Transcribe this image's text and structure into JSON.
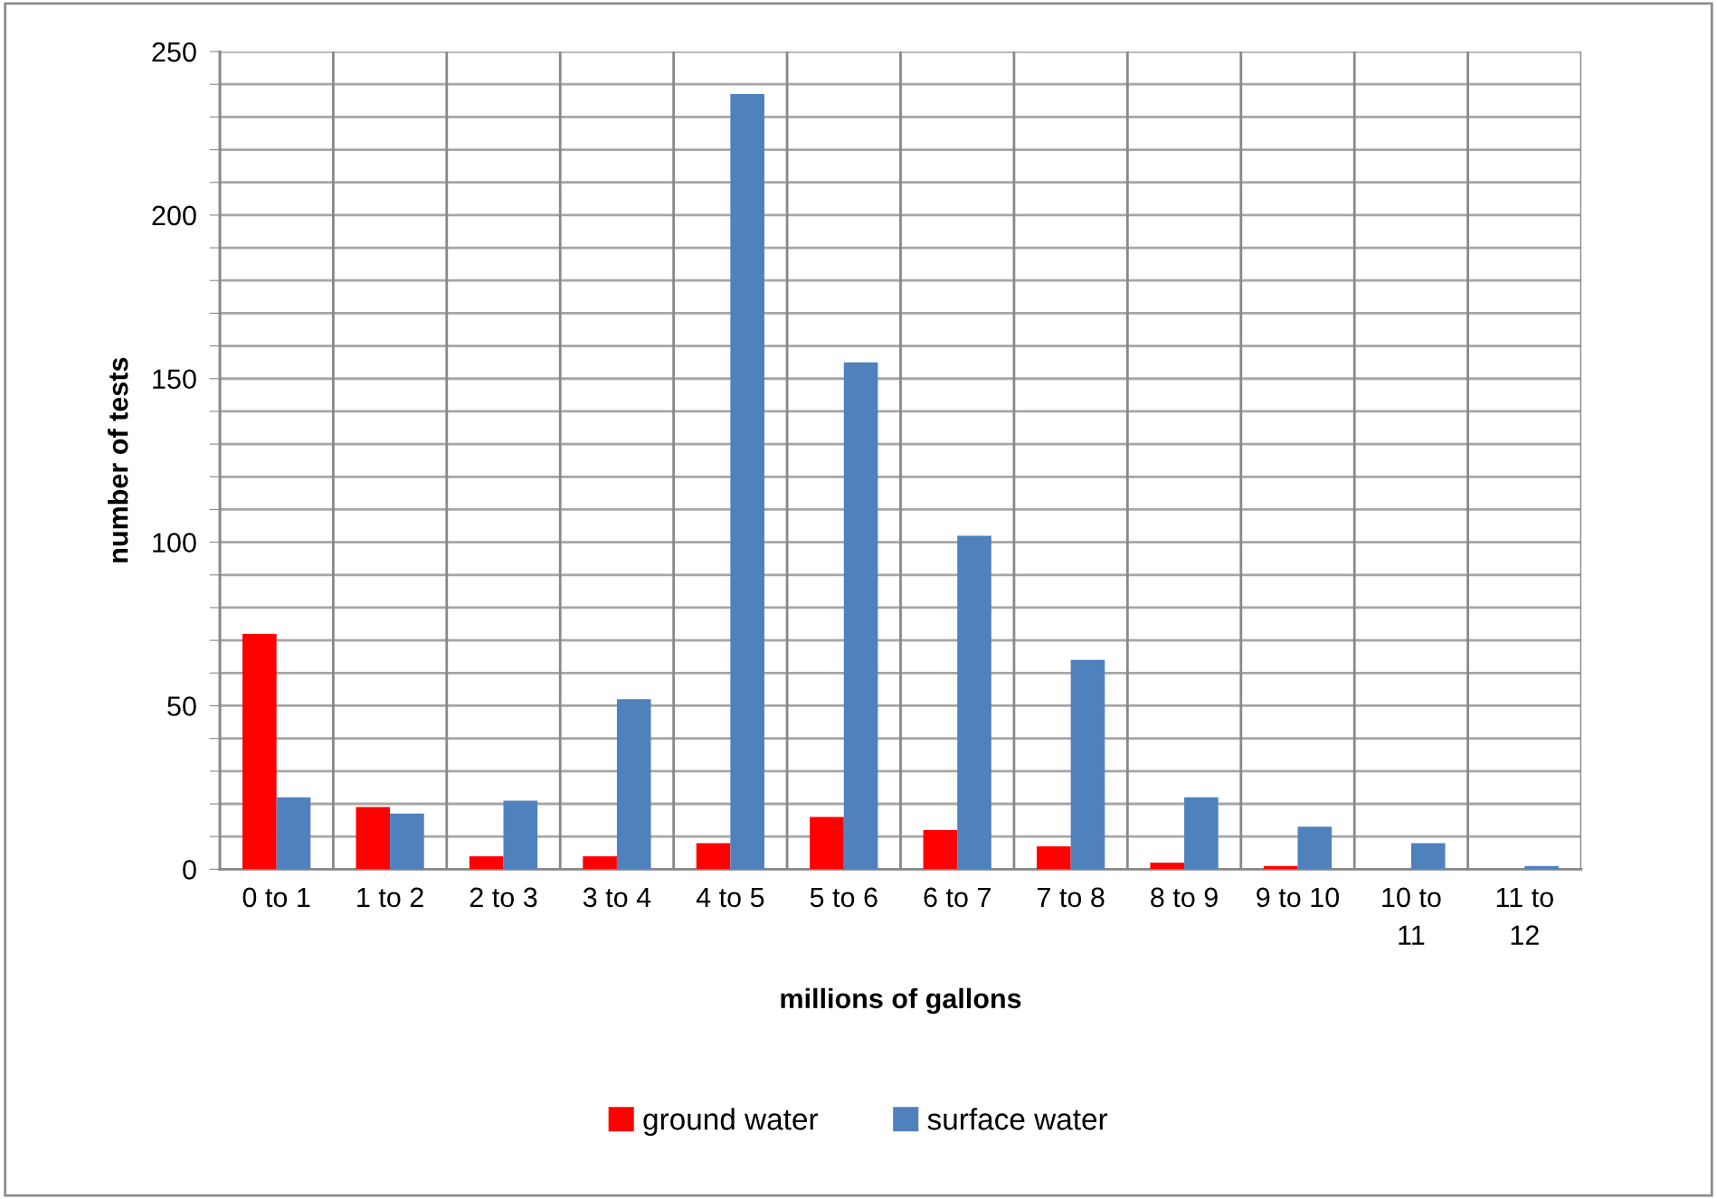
{
  "chart_data": {
    "type": "bar",
    "xlabel": "millions of gallons",
    "ylabel": "number of tests",
    "categories": [
      "0 to 1",
      "1 to 2",
      "2 to 3",
      "3 to 4",
      "4 to 5",
      "5 to 6",
      "6 to 7",
      "7 to 8",
      "8 to 9",
      "9 to 10",
      "10 to 11",
      "11 to 12"
    ],
    "series": [
      {
        "name": "ground water",
        "color": "#ff0000",
        "values": [
          72,
          19,
          4,
          4,
          8,
          16,
          12,
          7,
          2,
          1,
          0,
          0
        ]
      },
      {
        "name": "surface water",
        "color": "#4f81bd",
        "values": [
          22,
          17,
          21,
          52,
          237,
          155,
          102,
          64,
          22,
          13,
          8,
          1
        ]
      }
    ],
    "ylim": [
      0,
      250
    ],
    "yticks": [
      0,
      {
        "value": 10,
        "label": null
      },
      {
        "value": 20,
        "label": null
      },
      {
        "value": 30,
        "label": null
      },
      {
        "value": 40,
        "label": null
      },
      50,
      {
        "value": 60,
        "label": null
      },
      {
        "value": 70,
        "label": null
      },
      {
        "value": 80,
        "label": null
      },
      {
        "value": 90,
        "label": null
      },
      100,
      {
        "value": 110,
        "label": null
      },
      {
        "value": 120,
        "label": null
      },
      {
        "value": 130,
        "label": null
      },
      {
        "value": 140,
        "label": null
      },
      150,
      {
        "value": 160,
        "label": null
      },
      {
        "value": 170,
        "label": null
      },
      {
        "value": 180,
        "label": null
      },
      {
        "value": 190,
        "label": null
      },
      200,
      {
        "value": 210,
        "label": null
      },
      {
        "value": 220,
        "label": null
      },
      {
        "value": 230,
        "label": null
      },
      {
        "value": 240,
        "label": null
      },
      250
    ],
    "grid": true,
    "legend": "bottom"
  }
}
